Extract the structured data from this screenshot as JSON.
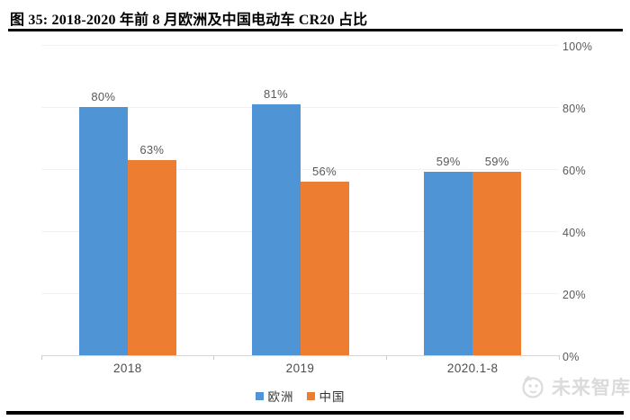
{
  "header": {
    "title": "图 35:  2018-2020 年前 8 月欧洲及中国电动车 CR20 占比"
  },
  "chart_data": {
    "type": "bar",
    "title": "2018-2020 年前 8 月欧洲及中国电动车 CR20 占比",
    "categories": [
      "2018",
      "2019",
      "2020.1-8"
    ],
    "series": [
      {
        "name": "欧洲",
        "color": "#4f94d4",
        "values": [
          80,
          81,
          59
        ],
        "labels": [
          "80%",
          "81%",
          "59%"
        ]
      },
      {
        "name": "中国",
        "color": "#ed7d31",
        "values": [
          63,
          56,
          59
        ],
        "labels": [
          "63%",
          "56%",
          "59%"
        ]
      }
    ],
    "xlabel": "",
    "ylabel": "",
    "ylim": [
      0,
      100
    ],
    "y_ticks": [
      0,
      20,
      40,
      60,
      80,
      100
    ],
    "y_tick_labels": [
      "0%",
      "20%",
      "40%",
      "60%",
      "80%",
      "100%"
    ],
    "axis_side": "right",
    "legend_position": "bottom",
    "grid": true,
    "grid_color": "#f2f2f2",
    "axis_color": "#d6d6d6",
    "label_color": "#595959"
  },
  "watermark": {
    "text": "未来智库"
  }
}
